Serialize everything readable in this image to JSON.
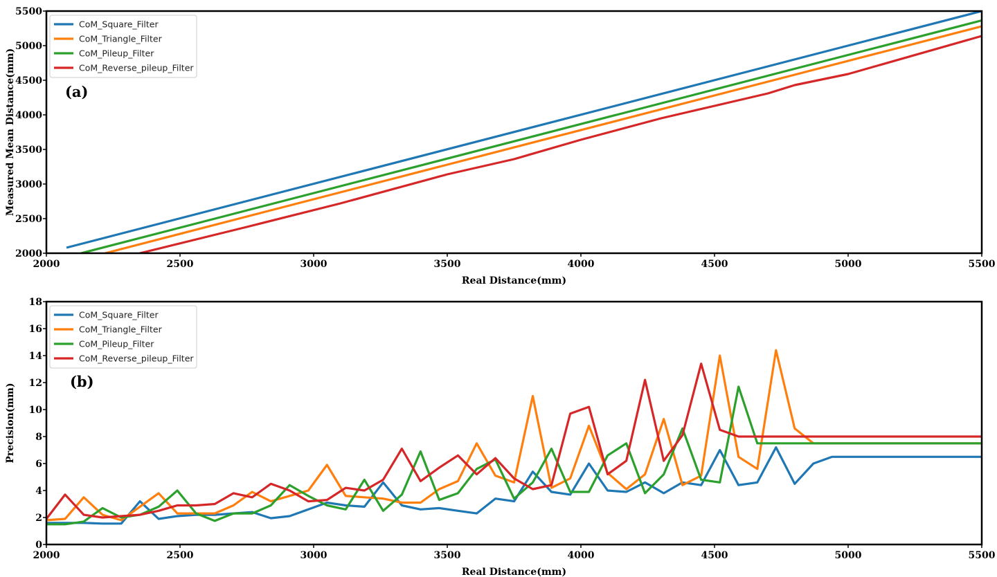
{
  "colors": {
    "CoM_Square_Filter": "#1f77b4",
    "CoM_Triangle_Filter": "#ff7f0e",
    "CoM_Pileup_Filter": "#2ca02c",
    "CoM_Reverse_pileup_Filter": "#d62728"
  },
  "chart_data": [
    {
      "type": "line",
      "panel_label": "(a)",
      "xlabel": "Real Distance(mm)",
      "ylabel": "Measured Mean Distance(mm)",
      "xlim": [
        2000,
        5500
      ],
      "ylim": [
        2000,
        5500
      ],
      "xticks": [
        2000,
        2500,
        3000,
        3500,
        4000,
        4500,
        5000,
        5500
      ],
      "yticks": [
        2000,
        2500,
        3000,
        3500,
        4000,
        4500,
        5000,
        5500
      ],
      "legend": "upper left",
      "grid": false,
      "series": [
        {
          "name": "CoM_Square_Filter",
          "x": [
            2075,
            5500
          ],
          "y": [
            2080,
            5500
          ]
        },
        {
          "name": "CoM_Triangle_Filter",
          "x": [
            2220,
            5500
          ],
          "y": [
            2000,
            5280
          ]
        },
        {
          "name": "CoM_Pileup_Filter",
          "x": [
            2130,
            5500
          ],
          "y": [
            2000,
            5365
          ]
        },
        {
          "name": "CoM_Reverse_pileup_Filter",
          "x": [
            2350,
            2750,
            3100,
            3500,
            3750,
            4000,
            4300,
            4700,
            4800,
            5000,
            5500
          ],
          "y": [
            2000,
            2380,
            2720,
            3140,
            3360,
            3640,
            3950,
            4310,
            4430,
            4590,
            5140
          ]
        }
      ]
    },
    {
      "type": "line",
      "panel_label": "(b)",
      "xlabel": "Real Distance(mm)",
      "ylabel": "Precision(mm)",
      "xlim": [
        2000,
        5500
      ],
      "ylim": [
        0,
        18
      ],
      "xticks": [
        2000,
        2500,
        3000,
        3500,
        4000,
        4500,
        5000,
        5500
      ],
      "yticks": [
        0,
        2,
        4,
        6,
        8,
        10,
        12,
        14,
        16,
        18
      ],
      "legend": "upper left",
      "grid": false,
      "x": [
        2000,
        2070,
        2140,
        2210,
        2280,
        2350,
        2420,
        2490,
        2560,
        2630,
        2700,
        2770,
        2840,
        2910,
        2980,
        3050,
        3120,
        3190,
        3260,
        3330,
        3400,
        3470,
        3540,
        3610,
        3680,
        3750,
        3820,
        3890,
        3960,
        4030,
        4100,
        4170,
        4240,
        4310,
        4380,
        4450,
        4520,
        4590,
        4660,
        4730,
        4800,
        4870,
        4940,
        5010,
        5080,
        5150,
        5220,
        5290,
        5360,
        5430,
        5500
      ],
      "series": [
        {
          "name": "CoM_Square_Filter",
          "values": [
            1.6,
            1.6,
            1.6,
            1.55,
            1.55,
            3.2,
            1.9,
            2.1,
            2.2,
            2.2,
            2.3,
            2.4,
            1.95,
            2.1,
            2.6,
            3.1,
            2.9,
            2.8,
            4.6,
            2.9,
            2.6,
            2.7,
            2.5,
            2.3,
            3.4,
            3.2,
            5.4,
            3.9,
            3.7,
            6.0,
            4.0,
            3.9,
            4.6,
            3.8,
            4.6,
            4.4,
            7.0,
            4.4,
            4.6,
            7.2,
            4.5,
            6.0,
            6.5,
            6.5,
            6.5,
            6.5,
            6.5,
            6.5,
            6.5,
            6.5,
            6.5
          ]
        },
        {
          "name": "CoM_Triangle_Filter",
          "values": [
            1.8,
            1.9,
            3.5,
            2.2,
            1.8,
            2.8,
            3.8,
            2.3,
            2.3,
            2.3,
            2.9,
            3.9,
            3.2,
            3.6,
            4.0,
            5.9,
            3.6,
            3.5,
            3.4,
            3.1,
            3.1,
            4.1,
            4.7,
            7.5,
            5.1,
            4.6,
            11.0,
            4.2,
            4.9,
            8.8,
            5.3,
            4.1,
            5.2,
            9.3,
            4.4,
            5.1,
            14.0,
            6.5,
            5.6,
            14.4,
            8.6,
            7.5,
            7.5,
            7.5,
            7.5,
            7.5,
            7.5,
            7.5,
            7.5,
            7.5,
            7.5
          ]
        },
        {
          "name": "CoM_Pileup_Filter",
          "values": [
            1.5,
            1.5,
            1.7,
            2.7,
            2.0,
            2.2,
            2.8,
            4.0,
            2.3,
            1.75,
            2.3,
            2.3,
            2.9,
            4.4,
            3.6,
            2.9,
            2.6,
            4.8,
            2.5,
            3.7,
            6.9,
            3.3,
            3.8,
            5.6,
            6.3,
            3.4,
            4.6,
            7.1,
            3.9,
            3.9,
            6.6,
            7.5,
            3.8,
            5.2,
            8.6,
            4.8,
            4.6,
            11.7,
            7.5,
            7.5,
            7.5,
            7.5,
            7.5,
            7.5,
            7.5,
            7.5,
            7.5,
            7.5,
            7.5,
            7.5,
            7.5
          ]
        },
        {
          "name": "CoM_Reverse_pileup_Filter",
          "values": [
            1.9,
            3.7,
            2.2,
            2.0,
            2.1,
            2.2,
            2.5,
            2.9,
            2.9,
            3.0,
            3.8,
            3.5,
            4.5,
            4.0,
            3.2,
            3.3,
            4.2,
            4.0,
            4.8,
            7.1,
            4.7,
            5.7,
            6.6,
            5.2,
            6.4,
            4.9,
            4.1,
            4.4,
            9.7,
            10.2,
            5.2,
            6.2,
            12.2,
            6.2,
            8.1,
            13.4,
            8.5,
            8.0,
            8.0,
            8.0,
            8.0,
            8.0,
            8.0,
            8.0,
            8.0,
            8.0,
            8.0,
            8.0,
            8.0,
            8.0,
            8.0
          ]
        }
      ]
    }
  ]
}
